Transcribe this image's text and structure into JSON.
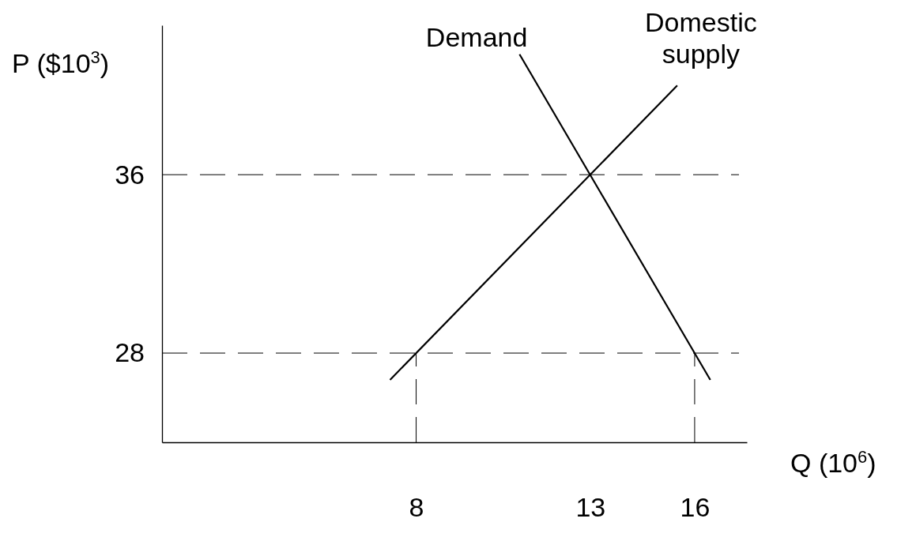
{
  "chart_data": {
    "type": "line",
    "xlabel": "Q (10$^{6}$)",
    "ylabel": "P ($10$^{3}$)",
    "xlim": [
      0.7,
      17.5
    ],
    "ylim": [
      24,
      42.7
    ],
    "xticks": [
      8,
      13,
      16
    ],
    "yticks": [
      28,
      36
    ],
    "grid": false,
    "legend": false,
    "line_style": "solid",
    "marker": "none",
    "series": [
      {
        "name": "Demand",
        "color": "#000000",
        "x": [
          10.97,
          16.45
        ],
        "values": [
          41.4,
          26.8
        ]
      },
      {
        "name": "Domestic supply",
        "color": "#000000",
        "x": [
          7.25,
          15.5
        ],
        "values": [
          26.8,
          40
        ]
      },
      {
        "color": "#000000",
        "line_style": "dashed",
        "x": [
          8,
          8
        ],
        "values": [
          24,
          28
        ]
      },
      {
        "color": "#000000",
        "line_style": "dashed",
        "x": [
          16,
          16
        ],
        "values": [
          24,
          28
        ]
      }
    ],
    "ref_lines": [
      {
        "axis": "y",
        "value": 36,
        "color": "#000000",
        "line_style": "dashed"
      },
      {
        "axis": "y",
        "value": 28,
        "color": "#000000",
        "line_style": "dashed"
      }
    ]
  }
}
